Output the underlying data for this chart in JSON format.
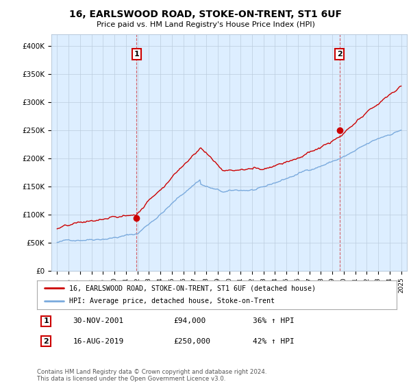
{
  "title": "16, EARLSWOOD ROAD, STOKE-ON-TRENT, ST1 6UF",
  "subtitle": "Price paid vs. HM Land Registry's House Price Index (HPI)",
  "ylim": [
    0,
    420000
  ],
  "yticks": [
    0,
    50000,
    100000,
    150000,
    200000,
    250000,
    300000,
    350000,
    400000
  ],
  "ytick_labels": [
    "£0",
    "£50K",
    "£100K",
    "£150K",
    "£200K",
    "£250K",
    "£300K",
    "£350K",
    "£400K"
  ],
  "sale1_t": 2001.917,
  "sale1_p": 94000,
  "sale2_t": 2019.625,
  "sale2_p": 250000,
  "legend_line1": "16, EARLSWOOD ROAD, STOKE-ON-TRENT, ST1 6UF (detached house)",
  "legend_line2": "HPI: Average price, detached house, Stoke-on-Trent",
  "annotation1_date": "30-NOV-2001",
  "annotation1_price": "£94,000",
  "annotation1_hpi": "36% ↑ HPI",
  "annotation2_date": "16-AUG-2019",
  "annotation2_price": "£250,000",
  "annotation2_hpi": "42% ↑ HPI",
  "footer": "Contains HM Land Registry data © Crown copyright and database right 2024.\nThis data is licensed under the Open Government Licence v3.0.",
  "line_color_red": "#cc0000",
  "line_color_blue": "#7aaadd",
  "bg_color": "#ffffff",
  "chart_bg_color": "#ddeeff",
  "grid_color": "#bbccdd"
}
